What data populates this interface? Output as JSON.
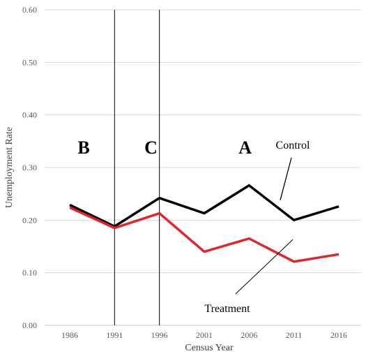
{
  "chart_data": {
    "type": "line",
    "title": "",
    "xlabel": "Census Year",
    "ylabel": "Unemployment Rate",
    "x": [
      "1986",
      "1991",
      "1996",
      "2001",
      "2006",
      "2011",
      "2016"
    ],
    "ylim": [
      0,
      0.6
    ],
    "yticks": [
      "0.00",
      "0.10",
      "0.20",
      "0.30",
      "0.40",
      "0.50",
      "0.60"
    ],
    "grid": true,
    "legend": "none",
    "series": [
      {
        "name": "Control",
        "color": "#000000",
        "values": [
          0.229,
          0.188,
          0.242,
          0.213,
          0.266,
          0.2,
          0.226
        ]
      },
      {
        "name": "Treatment",
        "color": "#e3242b",
        "values": [
          0.224,
          0.185,
          0.213,
          0.14,
          0.165,
          0.121,
          0.135
        ]
      }
    ],
    "vertical_lines": [
      1991,
      1996
    ],
    "regions": [
      {
        "label": "B",
        "x": 1986
      },
      {
        "label": "C",
        "x": 1993.5
      },
      {
        "label": "A",
        "x": 2004
      }
    ]
  }
}
